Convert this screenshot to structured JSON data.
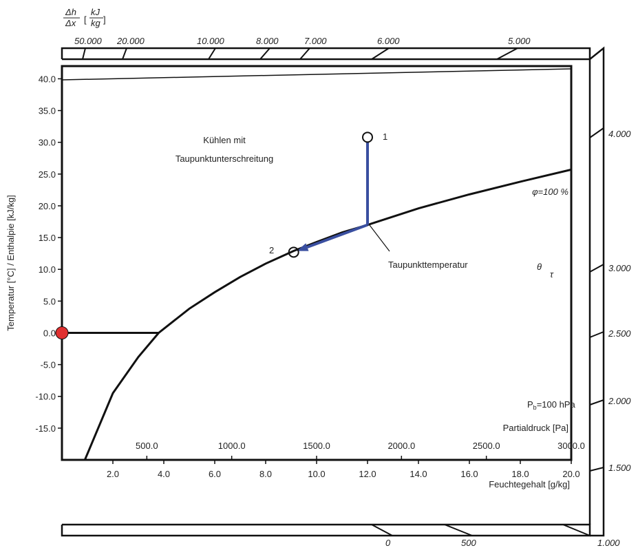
{
  "chart_data": {
    "type": "line",
    "title": "",
    "ylabel": "Temperatur [°C] / Enthalpie [kJ/kg]",
    "xlabel": "Feuchtegehalt [g/kg]",
    "x_secondary_label": "Partialdruck [Pa]",
    "ylim": [
      -20,
      42
    ],
    "xlim": [
      0,
      20
    ],
    "x_ticks": [
      "2.0",
      "4.0",
      "6.0",
      "8.0",
      "10.0",
      "12.0",
      "14.0",
      "16.0",
      "18.0",
      "20.0"
    ],
    "x_tick_values": [
      2,
      4,
      6,
      8,
      10,
      12,
      14,
      16,
      18,
      20
    ],
    "y_ticks": [
      "40.0",
      "35.0",
      "30.0",
      "25.0",
      "20.0",
      "15.0",
      "10.0",
      "5.0",
      "0.0",
      "-5.0",
      "-10.0",
      "-15.0"
    ],
    "y_tick_values": [
      40,
      35,
      30,
      25,
      20,
      15,
      10,
      5,
      0,
      -5,
      -10,
      -15
    ],
    "partial_pressure_ticks": [
      "500.0",
      "1000.0",
      "1500.0",
      "2000.0",
      "2500.0",
      "3000.0"
    ],
    "partial_pressure_values": [
      500,
      1000,
      1500,
      2000,
      2500,
      3000
    ],
    "top_scale_header": {
      "num": "Δh",
      "den": "Δx",
      "unit_num": "kJ",
      "unit_den": "kg"
    },
    "top_scale_ticks": [
      "50.000",
      "20.000",
      "10.000",
      "8.000",
      "7.000",
      "6.000",
      "5.000"
    ],
    "right_scale_ticks": [
      "4.000",
      "3.000",
      "2.500",
      "2.000",
      "1.500"
    ],
    "bottom_scale_ticks": [
      "0",
      "500",
      "1.000"
    ],
    "saturation_label": "φ=100  %",
    "pressure_label": "P",
    "pressure_sub": "b",
    "pressure_value": "=100 hPa",
    "annotation_title_line1": "Kühlen mit",
    "annotation_title_line2": "Taupunktunterschreitung",
    "dew_label": "Taupunkttemperatur",
    "theta_symbol": "θ",
    "theta_sub": "τ",
    "saturation_curve": [
      {
        "x": 0.9,
        "y": -20
      },
      {
        "x": 2.0,
        "y": -9.5
      },
      {
        "x": 3.0,
        "y": -3.8
      },
      {
        "x": 3.8,
        "y": 0
      },
      {
        "x": 5.0,
        "y": 3.8
      },
      {
        "x": 6.0,
        "y": 6.4
      },
      {
        "x": 7.0,
        "y": 8.8
      },
      {
        "x": 8.0,
        "y": 10.9
      },
      {
        "x": 9.1,
        "y": 12.9
      },
      {
        "x": 10.0,
        "y": 14.3
      },
      {
        "x": 11.0,
        "y": 15.8
      },
      {
        "x": 12.0,
        "y": 17.0
      },
      {
        "x": 14.0,
        "y": 19.6
      },
      {
        "x": 16.0,
        "y": 21.8
      },
      {
        "x": 18.0,
        "y": 23.8
      },
      {
        "x": 20.0,
        "y": 25.7
      }
    ],
    "process_vertical": [
      {
        "x": 12.0,
        "y": 30.8
      },
      {
        "x": 12.0,
        "y": 17.0
      }
    ],
    "process_along": [
      {
        "x": 12.0,
        "y": 17.0
      },
      {
        "x": 9.1,
        "y": 12.7
      }
    ],
    "points": [
      {
        "label": "1",
        "x": 12.0,
        "y": 30.8
      },
      {
        "label": "2",
        "x": 9.1,
        "y": 12.7
      }
    ],
    "zero_line": {
      "x_from": 0,
      "x_to": 3.8,
      "y": 0
    },
    "red_marker": {
      "x": 0,
      "y": 0,
      "color": "#e03030"
    },
    "colors": {
      "process": "#3a4fa0",
      "curve": "#111111",
      "marker": "#e03030"
    }
  }
}
